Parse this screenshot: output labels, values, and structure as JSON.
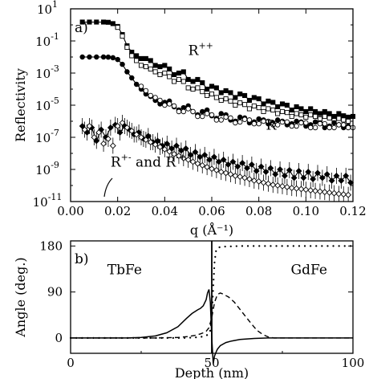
{
  "chart_data": [
    {
      "panel_label": "a)",
      "type": "scatter",
      "xlabel": "q (Å⁻¹)",
      "ylabel": "Reflectivity",
      "xlim": [
        0.0,
        0.12
      ],
      "ylim": [
        1e-11,
        10
      ],
      "yscale": "log",
      "xticks": [
        "0.00",
        "0.02",
        "0.04",
        "0.06",
        "0.08",
        "0.10",
        "0.12"
      ],
      "yticks": [
        {
          "base": "10",
          "exp": "1",
          "value": 10
        },
        {
          "base": "10",
          "exp": "-1",
          "value": 0.1
        },
        {
          "base": "10",
          "exp": "-3",
          "value": 0.001
        },
        {
          "base": "10",
          "exp": "-5",
          "value": 1e-05
        },
        {
          "base": "10",
          "exp": "-7",
          "value": 1e-07
        },
        {
          "base": "10",
          "exp": "-9",
          "value": 1e-09
        },
        {
          "base": "10",
          "exp": "-11",
          "value": 1e-11
        }
      ],
      "annotations": [
        {
          "text": "R",
          "sup": "++",
          "q": 0.05,
          "r": 0.013
        },
        {
          "text": "R",
          "sup": "- -",
          "q": 0.083,
          "r": 3e-07
        },
        {
          "text": "R",
          "sup": "+-",
          "rest": " and R",
          "sup2": "-+",
          "q": 0.017,
          "r": 1.5e-09
        }
      ],
      "series": [
        {
          "marker": "filled-square",
          "q": [
            0.005,
            0.008,
            0.011,
            0.014,
            0.016,
            0.018,
            0.02,
            0.022,
            0.024,
            0.026,
            0.028,
            0.03,
            0.032,
            0.034,
            0.036,
            0.038,
            0.04,
            0.042,
            0.044,
            0.046,
            0.048,
            0.05,
            0.052,
            0.054,
            0.056,
            0.058,
            0.06,
            0.062,
            0.064,
            0.066,
            0.068,
            0.07,
            0.072,
            0.074,
            0.076,
            0.078,
            0.08,
            0.082,
            0.084,
            0.086,
            0.088,
            0.09,
            0.092,
            0.094,
            0.096,
            0.098,
            0.1,
            0.102,
            0.104,
            0.106,
            0.108,
            0.11,
            0.112,
            0.114,
            0.116,
            0.118,
            0.12
          ],
          "r": [
            1.5,
            1.5,
            1.5,
            1.5,
            1.45,
            1.2,
            0.8,
            0.25,
            0.05,
            0.02,
            0.012,
            0.008,
            0.008,
            0.006,
            0.003,
            0.0025,
            0.003,
            0.0018,
            0.0008,
            0.001,
            0.0012,
            0.0004,
            0.0003,
            0.0004,
            0.00025,
            0.0001,
            0.00015,
            0.00012,
            6e-05,
            8e-05,
            6e-05,
            3e-05,
            5e-05,
            4e-05,
            2e-05,
            3e-05,
            2.5e-05,
            1.2e-05,
            1.8e-05,
            1.5e-05,
            8e-06,
            1.2e-05,
            1e-05,
            5e-06,
            8e-06,
            6e-06,
            4e-06,
            6e-06,
            4e-06,
            3e-06,
            4e-06,
            3e-06,
            2e-06,
            3e-06,
            2.2e-06,
            1.8e-06,
            2e-06
          ]
        },
        {
          "marker": "open-square",
          "q": [
            0.02,
            0.022,
            0.024,
            0.026,
            0.028,
            0.03,
            0.032,
            0.034,
            0.036,
            0.038,
            0.04,
            0.042,
            0.044,
            0.046,
            0.048,
            0.05,
            0.052,
            0.054,
            0.056,
            0.058,
            0.06,
            0.062,
            0.064,
            0.066,
            0.068,
            0.07,
            0.072,
            0.074,
            0.076,
            0.078,
            0.08,
            0.082,
            0.084,
            0.086,
            0.088,
            0.09,
            0.092,
            0.094,
            0.096,
            0.098,
            0.1,
            0.102,
            0.104,
            0.106,
            0.108,
            0.11,
            0.112,
            0.114,
            0.116,
            0.118
          ],
          "r": [
            0.7,
            0.2,
            0.04,
            0.012,
            0.006,
            0.003,
            0.0025,
            0.0018,
            0.0012,
            0.0008,
            0.001,
            0.0006,
            0.0003,
            0.0004,
            0.0003,
            0.00012,
            0.0001,
            0.00012,
            7e-05,
            4e-05,
            5e-05,
            3e-05,
            2e-05,
            2.5e-05,
            1.8e-05,
            1e-05,
            1.4e-05,
            1.1e-05,
            6e-06,
            9e-06,
            7e-06,
            4e-06,
            6e-06,
            5e-06,
            3e-06,
            4e-06,
            3.5e-06,
            2e-06,
            3e-06,
            2.5e-06,
            1.8e-06,
            2.5e-06,
            2e-06,
            1.4e-06,
            2e-06,
            1.6e-06,
            1.1e-06,
            1.5e-06,
            1.2e-06,
            1e-06
          ]
        },
        {
          "marker": "filled-circle",
          "q": [
            0.005,
            0.008,
            0.011,
            0.014,
            0.016,
            0.018,
            0.02,
            0.022,
            0.024,
            0.026,
            0.028,
            0.03,
            0.032,
            0.034,
            0.036,
            0.038,
            0.04,
            0.042,
            0.044,
            0.046,
            0.048,
            0.05,
            0.052,
            0.054,
            0.056,
            0.058,
            0.06,
            0.062,
            0.064,
            0.066,
            0.068,
            0.07,
            0.072,
            0.074,
            0.076,
            0.078,
            0.08,
            0.082,
            0.084,
            0.086,
            0.088,
            0.09,
            0.092,
            0.094,
            0.096,
            0.098,
            0.1,
            0.102,
            0.104,
            0.106,
            0.108,
            0.11,
            0.112,
            0.114,
            0.116,
            0.118
          ],
          "r": [
            0.01,
            0.01,
            0.01,
            0.01,
            0.0098,
            0.009,
            0.007,
            0.0035,
            0.0012,
            0.0005,
            0.0002,
            0.0001,
            5e-05,
            3.5e-05,
            2e-05,
            1.2e-05,
            1.5e-05,
            1.8e-05,
            8e-06,
            5e-06,
            7e-06,
            9e-06,
            4e-06,
            2.5e-06,
            4e-06,
            5e-06,
            2.2e-06,
            1.5e-06,
            3e-06,
            2.5e-06,
            1.2e-06,
            1e-06,
            1.8e-06,
            1.6e-06,
            8e-07,
            9e-07,
            1.4e-06,
            1.2e-06,
            7e-07,
            8e-07,
            1.2e-06,
            1e-06,
            6e-07,
            7e-07,
            1e-06,
            9e-07,
            5e-07,
            6e-07,
            9e-07,
            8e-07,
            4e-07,
            5e-07,
            8e-07,
            6e-07,
            4e-07,
            5e-07
          ]
        },
        {
          "marker": "open-circle",
          "q": [
            0.03,
            0.032,
            0.034,
            0.036,
            0.038,
            0.04,
            0.042,
            0.044,
            0.046,
            0.048,
            0.05,
            0.052,
            0.054,
            0.056,
            0.058,
            0.06,
            0.062,
            0.064,
            0.066,
            0.068,
            0.07,
            0.072,
            0.074,
            0.076,
            0.078,
            0.08,
            0.082,
            0.084,
            0.086,
            0.088,
            0.09,
            0.092,
            0.094,
            0.096,
            0.098,
            0.1,
            0.102,
            0.104,
            0.106,
            0.108,
            0.11,
            0.112,
            0.114,
            0.116,
            0.118,
            0.12
          ],
          "r": [
            0.00015,
            8e-05,
            4e-05,
            3e-05,
            2e-05,
            1e-05,
            1.2e-05,
            9e-06,
            4e-06,
            4e-06,
            6e-06,
            4e-06,
            2e-06,
            2e-06,
            3e-06,
            2.5e-06,
            1.2e-06,
            1.2e-06,
            1.8e-06,
            1.6e-06,
            8e-07,
            9e-07,
            1.3e-06,
            1.2e-06,
            7e-07,
            7e-07,
            1e-06,
            1e-06,
            6e-07,
            6e-07,
            9e-07,
            9e-07,
            5e-07,
            5e-07,
            8e-07,
            8e-07,
            4e-07,
            4e-07,
            7e-07,
            7e-07,
            4e-07,
            4e-07,
            6e-07,
            6e-07,
            4e-07,
            4e-07
          ]
        },
        {
          "marker": "filled-diamond",
          "q": [
            0.005,
            0.007,
            0.009,
            0.011,
            0.013,
            0.015,
            0.017,
            0.019,
            0.021,
            0.023,
            0.025,
            0.027,
            0.029,
            0.031,
            0.033,
            0.035,
            0.037,
            0.039,
            0.041,
            0.043,
            0.045,
            0.047,
            0.049,
            0.051,
            0.053,
            0.055,
            0.057,
            0.059,
            0.061,
            0.063,
            0.065,
            0.067,
            0.069,
            0.071,
            0.073,
            0.075,
            0.077,
            0.079,
            0.081,
            0.083,
            0.085,
            0.087,
            0.089,
            0.091,
            0.093,
            0.095,
            0.097,
            0.099,
            0.101,
            0.103,
            0.105,
            0.107,
            0.109,
            0.111,
            0.113,
            0.115,
            0.117,
            0.119
          ],
          "r": [
            5e-07,
            2e-07,
            4e-07,
            6e-08,
            3e-07,
            1e-07,
            4e-07,
            6e-07,
            2e-07,
            5e-07,
            3e-07,
            1.5e-07,
            2e-07,
            8e-08,
            1.2e-07,
            5e-08,
            6e-08,
            3e-08,
            4e-08,
            2e-08,
            3e-08,
            1.5e-08,
            2e-08,
            8e-09,
            1.2e-08,
            6e-09,
            8e-09,
            4e-09,
            6e-09,
            3e-09,
            4e-09,
            2e-09,
            3e-09,
            1.5e-09,
            2.5e-09,
            1.2e-09,
            2e-09,
            8e-10,
            1.5e-09,
            7e-10,
            1.2e-09,
            5e-10,
            1e-09,
            4e-10,
            9e-10,
            3e-10,
            8e-10,
            3e-10,
            7e-10,
            2.5e-10,
            6e-10,
            3e-10,
            5e-10,
            2e-10,
            4e-10,
            2e-10,
            4e-10,
            1.5e-10
          ]
        },
        {
          "marker": "open-diamond",
          "q": [
            0.006,
            0.008,
            0.01,
            0.012,
            0.014,
            0.016,
            0.018,
            0.02,
            0.022,
            0.024,
            0.026,
            0.028,
            0.03,
            0.032,
            0.034,
            0.036,
            0.038,
            0.04,
            0.042,
            0.044,
            0.046,
            0.048,
            0.05,
            0.052,
            0.054,
            0.056,
            0.058,
            0.06,
            0.062,
            0.064,
            0.066,
            0.068,
            0.07,
            0.072,
            0.074,
            0.076,
            0.078,
            0.08,
            0.082,
            0.084,
            0.086,
            0.088,
            0.09,
            0.092,
            0.094,
            0.096,
            0.098,
            0.1,
            0.102,
            0.104,
            0.106,
            0.108,
            0.11,
            0.112,
            0.114,
            0.116,
            0.118
          ],
          "r": [
            3e-07,
            5e-07,
            1e-07,
            2e-07,
            4e-08,
            8e-08,
            3e-08,
            5e-07,
            8e-07,
            4e-07,
            2.5e-07,
            1.5e-07,
            1e-07,
            7e-08,
            5e-08,
            3.5e-08,
            2.5e-08,
            1.8e-08,
            1.3e-08,
            9e-09,
            7e-09,
            5e-09,
            4e-09,
            3e-09,
            2.3e-09,
            1.8e-09,
            1.4e-09,
            1.1e-09,
            9e-10,
            7e-10,
            6e-10,
            5e-10,
            4e-10,
            3.5e-10,
            3e-10,
            2.5e-10,
            2e-10,
            1.8e-10,
            1.5e-10,
            1.3e-10,
            1.1e-10,
            1e-10,
            9e-11,
            8e-11,
            7e-11,
            6.5e-11,
            6e-11,
            5.5e-11,
            5e-11,
            4.6e-11,
            4.2e-11,
            3.9e-11,
            3.6e-11,
            3.3e-11,
            3e-11,
            2.8e-11,
            2.6e-11
          ]
        }
      ]
    },
    {
      "panel_label": "b)",
      "type": "line",
      "xlabel": "Depth (nm)",
      "ylabel": "Angle (deg.)",
      "xlim": [
        0,
        100
      ],
      "ylim": [
        -30,
        190
      ],
      "xticks": [
        "0",
        "50",
        "100"
      ],
      "yticks": [
        "0",
        "90",
        "180"
      ],
      "annotations": [
        {
          "text": "TbFe",
          "x": 13,
          "y": 125
        },
        {
          "text": "GdFe",
          "x": 78,
          "y": 125
        }
      ],
      "series": [
        {
          "style": "dotted",
          "x": [
            0,
            30,
            40,
            44,
            46,
            47,
            48,
            48.5,
            49,
            49.5,
            50,
            50.5,
            51,
            51.5,
            52,
            53,
            55,
            60,
            70,
            80,
            90,
            100
          ],
          "y": [
            0,
            0,
            0,
            1,
            2,
            3,
            5,
            6,
            8,
            15,
            40,
            100,
            150,
            170,
            176,
            178,
            179,
            180,
            180,
            180,
            180,
            180
          ]
        },
        {
          "style": "dashed",
          "x": [
            0,
            30,
            38,
            42,
            44,
            46,
            47,
            48,
            49,
            50,
            51,
            52,
            53,
            54,
            56,
            58,
            60,
            62,
            64,
            66,
            68,
            70,
            72,
            80,
            100
          ],
          "y": [
            0,
            0,
            1,
            3,
            5,
            8,
            10,
            13,
            20,
            40,
            70,
            85,
            88,
            86,
            80,
            70,
            56,
            42,
            28,
            15,
            7,
            2,
            0,
            0,
            0
          ]
        },
        {
          "style": "solid",
          "x": [
            0,
            20,
            25,
            30,
            34,
            38,
            41,
            43,
            45,
            46,
            47,
            48,
            48.5,
            49,
            49.5,
            50,
            50.5,
            51,
            51.5,
            52,
            53,
            55,
            57,
            60,
            65,
            70,
            80,
            100
          ],
          "y": [
            0,
            0,
            1,
            4,
            10,
            22,
            38,
            48,
            55,
            58,
            63,
            75,
            88,
            95,
            70,
            0,
            -50,
            -35,
            -28,
            -22,
            -15,
            -9,
            -6,
            -3,
            -1,
            0,
            0,
            0
          ]
        }
      ]
    }
  ]
}
